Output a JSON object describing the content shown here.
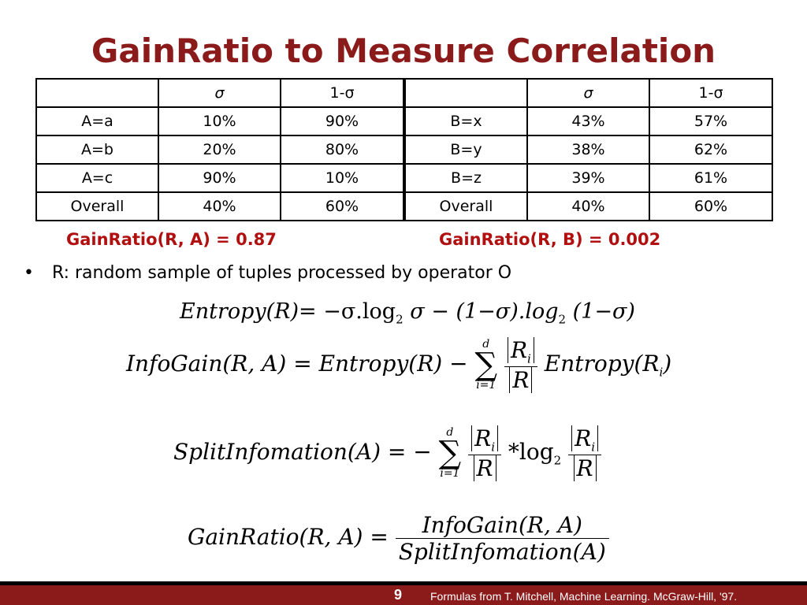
{
  "title": "GainRatio to Measure Correlation",
  "table_a": {
    "header": [
      "",
      "σ",
      "1-σ"
    ],
    "rows": [
      [
        "A=a",
        "10%",
        "90%"
      ],
      [
        "A=b",
        "20%",
        "80%"
      ],
      [
        "A=c",
        "90%",
        "10%"
      ],
      [
        "Overall",
        "40%",
        "60%"
      ]
    ]
  },
  "table_b": {
    "header": [
      "",
      "σ",
      "1-σ"
    ],
    "rows": [
      [
        "B=x",
        "43%",
        "57%"
      ],
      [
        "B=y",
        "38%",
        "62%"
      ],
      [
        "B=z",
        "39%",
        "61%"
      ],
      [
        "Overall",
        "40%",
        "60%"
      ]
    ]
  },
  "gain_a": "GainRatio(R, A) = 0.87",
  "gain_b": "GainRatio(R, B) = 0.002",
  "bullet": "R: random sample of tuples processed by operator O",
  "formulas": {
    "entropy_lhs": "Entropy(R)",
    "entropy_rhs": "= −σ.log",
    "entropy_rhs2": "σ − (1−σ).log",
    "entropy_rhs3": "(1−σ)",
    "log_base": "2",
    "infogain_lhs": "InfoGain(R, A) = Entropy(R) −",
    "infogain_rhs": "Entropy(R",
    "infogain_close": ")",
    "split_lhs": "SplitInfomation(A) = −",
    "split_mul": "*log",
    "gainratio_lhs": "GainRatio(R, A) =",
    "gainratio_num": "InfoGain(R, A)",
    "gainratio_den": "SplitInfomation(A)",
    "sum_upper": "d",
    "sum_lower": "i=1",
    "sum_symbol": "∑",
    "ri": "R",
    "ri_sub": "i",
    "r": "R"
  },
  "footer": {
    "page_number": "9",
    "credit": "Formulas from T. Mitchell, Machine Learning. McGraw-Hill, '97."
  }
}
